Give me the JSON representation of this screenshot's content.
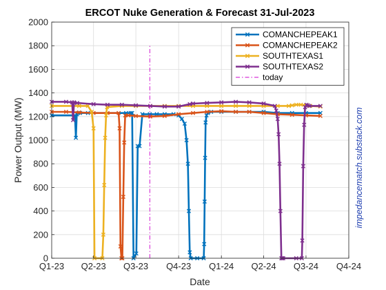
{
  "chart_data": {
    "type": "line",
    "title": "ERCOT Nuke Generation & Forecast 31-Jul-2023",
    "xlabel": "Date",
    "ylabel": "Power Output (MW)",
    "xlim": [
      "2023-01-01",
      "2024-10-01"
    ],
    "ylim": [
      0,
      2000
    ],
    "x_ticks": [
      "2023-01-01",
      "2023-04-01",
      "2023-07-01",
      "2023-10-01",
      "2024-01-01",
      "2024-04-01",
      "2024-07-01",
      "2024-10-01"
    ],
    "x_tick_labels": [
      "Q1-23",
      "Q2-23",
      "Q3-23",
      "Q4-23",
      "Q1-24",
      "Q2-24",
      "Q3-24",
      "Q4-24"
    ],
    "y_ticks": [
      0,
      200,
      400,
      600,
      800,
      1000,
      1200,
      1400,
      1600,
      1800,
      2000
    ],
    "grid": true,
    "legend_position": "top-right",
    "series": [
      {
        "name": "COMANCHEPEAK1",
        "color": "#0072BD",
        "x": [
          "2023-01-01",
          "2023-02-20",
          "2023-02-22",
          "2023-02-24",
          "2023-02-27",
          "2023-03-03",
          "2023-03-20",
          "2023-06-10",
          "2023-06-20",
          "2023-06-23",
          "2023-06-26",
          "2023-07-02",
          "2023-07-05",
          "2023-07-09",
          "2023-07-15",
          "2023-07-31",
          "2023-08-15",
          "2023-09-01",
          "2023-09-20",
          "2023-10-01",
          "2023-10-08",
          "2023-10-14",
          "2023-10-18",
          "2023-10-21",
          "2023-10-23",
          "2023-10-25",
          "2023-10-27",
          "2023-11-10",
          "2023-11-24",
          "2023-11-25",
          "2023-11-26",
          "2023-11-27",
          "2023-11-28",
          "2023-11-30",
          "2023-12-03",
          "2023-12-10",
          "2024-01-01",
          "2024-02-01",
          "2024-03-01",
          "2024-04-01",
          "2024-05-01",
          "2024-06-01",
          "2024-07-01",
          "2024-08-01"
        ],
        "y": [
          1210,
          1210,
          1020,
          1220,
          1230,
          1230,
          1230,
          1230,
          1230,
          1230,
          0,
          40,
          950,
          950,
          1220,
          1220,
          1220,
          1220,
          1220,
          1210,
          1180,
          1140,
          1000,
          800,
          400,
          50,
          0,
          0,
          0,
          120,
          480,
          850,
          1150,
          1210,
          1230,
          1240,
          1240,
          1240,
          1240,
          1240,
          1230,
          1230,
          1230,
          1230
        ]
      },
      {
        "name": "COMANCHEPEAK2",
        "color": "#D95319",
        "x": [
          "2023-01-01",
          "2023-02-01",
          "2023-03-01",
          "2023-04-01",
          "2023-05-01",
          "2023-05-25",
          "2023-05-27",
          "2023-05-29",
          "2023-05-31",
          "2023-06-02",
          "2023-06-04",
          "2023-06-06",
          "2023-06-08",
          "2023-06-15",
          "2023-07-01",
          "2023-08-01",
          "2023-09-01",
          "2023-10-01",
          "2023-11-01",
          "2023-12-01",
          "2024-01-01",
          "2024-02-01",
          "2024-03-01",
          "2024-04-01",
          "2024-05-01",
          "2024-06-01",
          "2024-07-01",
          "2024-08-01"
        ],
        "y": [
          1240,
          1240,
          1235,
          1230,
          1230,
          1230,
          1100,
          100,
          0,
          0,
          520,
          980,
          1210,
          1210,
          1205,
          1200,
          1205,
          1220,
          1230,
          1240,
          1245,
          1240,
          1240,
          1230,
          1220,
          1215,
          1210,
          1205
        ]
      },
      {
        "name": "SOUTHTEXAS1",
        "color": "#EDB120",
        "x": [
          "2023-01-01",
          "2023-03-01",
          "2023-03-20",
          "2023-03-28",
          "2023-04-01",
          "2023-04-03",
          "2023-04-20",
          "2023-04-22",
          "2023-04-24",
          "2023-04-26",
          "2023-04-28",
          "2023-04-30",
          "2023-06-01",
          "2023-07-01",
          "2023-08-01",
          "2023-09-01",
          "2023-10-01",
          "2023-11-01",
          "2023-12-01",
          "2024-01-01",
          "2024-02-01",
          "2024-03-01",
          "2024-04-01",
          "2024-05-01",
          "2024-05-25",
          "2024-06-01",
          "2024-06-10",
          "2024-06-20",
          "2024-07-01",
          "2024-07-10",
          "2024-08-01"
        ],
        "y": [
          1290,
          1290,
          1290,
          1240,
          1100,
          0,
          0,
          200,
          620,
          1020,
          1210,
          1280,
          1290,
          1290,
          1290,
          1290,
          1290,
          1290,
          1290,
          1290,
          1290,
          1290,
          1290,
          1290,
          1290,
          1295,
          1300,
          1300,
          1295,
          1290,
          1285
        ]
      },
      {
        "name": "SOUTHTEXAS2",
        "color": "#7E2F8E",
        "x": [
          "2023-01-01",
          "2023-02-01",
          "2023-02-14",
          "2023-02-16",
          "2023-02-18",
          "2023-02-25",
          "2023-04-01",
          "2023-05-01",
          "2023-06-01",
          "2023-07-01",
          "2023-08-01",
          "2023-09-01",
          "2023-10-01",
          "2023-10-25",
          "2023-11-01",
          "2023-12-01",
          "2024-01-01",
          "2024-02-01",
          "2024-03-01",
          "2024-04-01",
          "2024-04-25",
          "2024-04-28",
          "2024-05-01",
          "2024-05-03",
          "2024-05-05",
          "2024-05-07",
          "2024-05-09",
          "2024-05-11",
          "2024-05-13",
          "2024-06-10",
          "2024-06-22",
          "2024-06-23",
          "2024-06-25",
          "2024-06-27",
          "2024-06-29",
          "2024-07-02",
          "2024-07-05",
          "2024-07-08",
          "2024-08-01"
        ],
        "y": [
          1325,
          1325,
          1320,
          1170,
          1320,
          1315,
          1305,
          1300,
          1300,
          1295,
          1290,
          1285,
          1285,
          1305,
          1310,
          1315,
          1320,
          1325,
          1320,
          1310,
          1290,
          1250,
          1180,
          1050,
          800,
          400,
          0,
          0,
          0,
          0,
          0,
          150,
          780,
          1130,
          1280,
          1300,
          1295,
          1290,
          1290
        ]
      }
    ],
    "annotations": [
      {
        "type": "vline",
        "label": "today",
        "x": "2023-07-31",
        "y_range": [
          0,
          1800
        ],
        "color": "#CC00CC",
        "style": "dash-dot"
      }
    ],
    "watermark": "impedancematch.substack.com"
  }
}
